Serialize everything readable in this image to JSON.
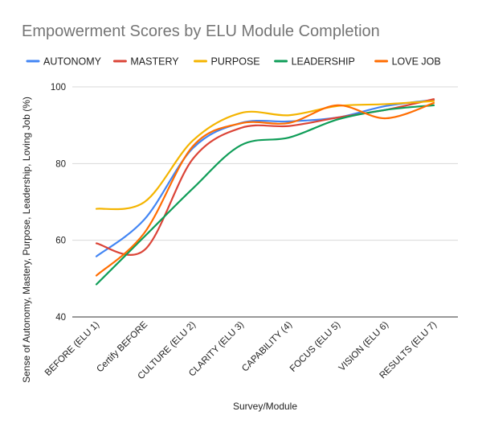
{
  "chart_data": {
    "type": "line",
    "title": "Empowerment Scores by ELU Module Completion",
    "xlabel": "Survey/Module",
    "ylabel": "Sense of Autonomy, Mastery, Purpose, Leadership, Loving Job (%)",
    "ylim": [
      40,
      100
    ],
    "yticks": [
      40,
      60,
      80,
      100
    ],
    "grid": true,
    "smooth": true,
    "legend_position": "top",
    "categories": [
      "BEFORE (ELU 1)",
      "Certify BEFORE",
      "CULTURE (ELU 2)",
      "CLARITY (ELU 3)",
      "CAPABILITY (4)",
      "FOCUS (ELU 5)",
      "VISION (ELU 6)",
      "RESULTS (ELU 7)"
    ],
    "series": [
      {
        "name": "AUTONOMY",
        "color": "#4285F4",
        "values": [
          55.8,
          65.5,
          84.0,
          90.6,
          91.0,
          92.0,
          95.0,
          96.6
        ]
      },
      {
        "name": "MASTERY",
        "color": "#DB4437",
        "values": [
          59.2,
          57.5,
          81.2,
          89.3,
          89.8,
          92.0,
          94.0,
          96.8
        ]
      },
      {
        "name": "PURPOSE",
        "color": "#F4B400",
        "values": [
          68.2,
          70.0,
          86.0,
          93.2,
          92.6,
          95.0,
          95.5,
          96.3
        ]
      },
      {
        "name": "LEADERSHIP",
        "color": "#0F9D58",
        "values": [
          48.5,
          61.0,
          73.5,
          84.8,
          86.8,
          91.5,
          94.0,
          95.2
        ]
      },
      {
        "name": "LOVE JOB",
        "color": "#FF6D01",
        "values": [
          50.8,
          62.0,
          84.5,
          90.5,
          90.6,
          95.2,
          91.8,
          95.8
        ]
      }
    ]
  }
}
